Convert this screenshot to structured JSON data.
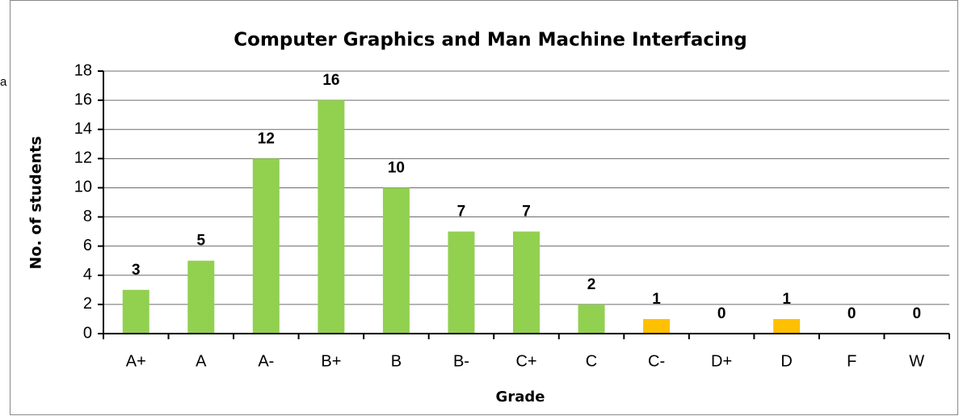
{
  "side_text": "a",
  "chart_data": {
    "type": "bar",
    "title": "Computer Graphics and Man Machine Interfacing",
    "x_label": "Grade",
    "y_label": "No. of students",
    "categories": [
      "A+",
      "A",
      "A-",
      "B+",
      "B",
      "B-",
      "C+",
      "C",
      "C-",
      "D+",
      "D",
      "F",
      "W"
    ],
    "values": [
      3,
      5,
      12,
      16,
      10,
      7,
      7,
      2,
      1,
      0,
      1,
      0,
      0
    ],
    "colors": [
      "#92d050",
      "#92d050",
      "#92d050",
      "#92d050",
      "#92d050",
      "#92d050",
      "#92d050",
      "#92d050",
      "#ffc000",
      "#ffc000",
      "#ffc000",
      "#ffc000",
      "#ffc000"
    ],
    "ylim": [
      0,
      18
    ],
    "yticks": [
      0,
      2,
      4,
      6,
      8,
      10,
      12,
      14,
      16,
      18
    ],
    "grid": true
  }
}
